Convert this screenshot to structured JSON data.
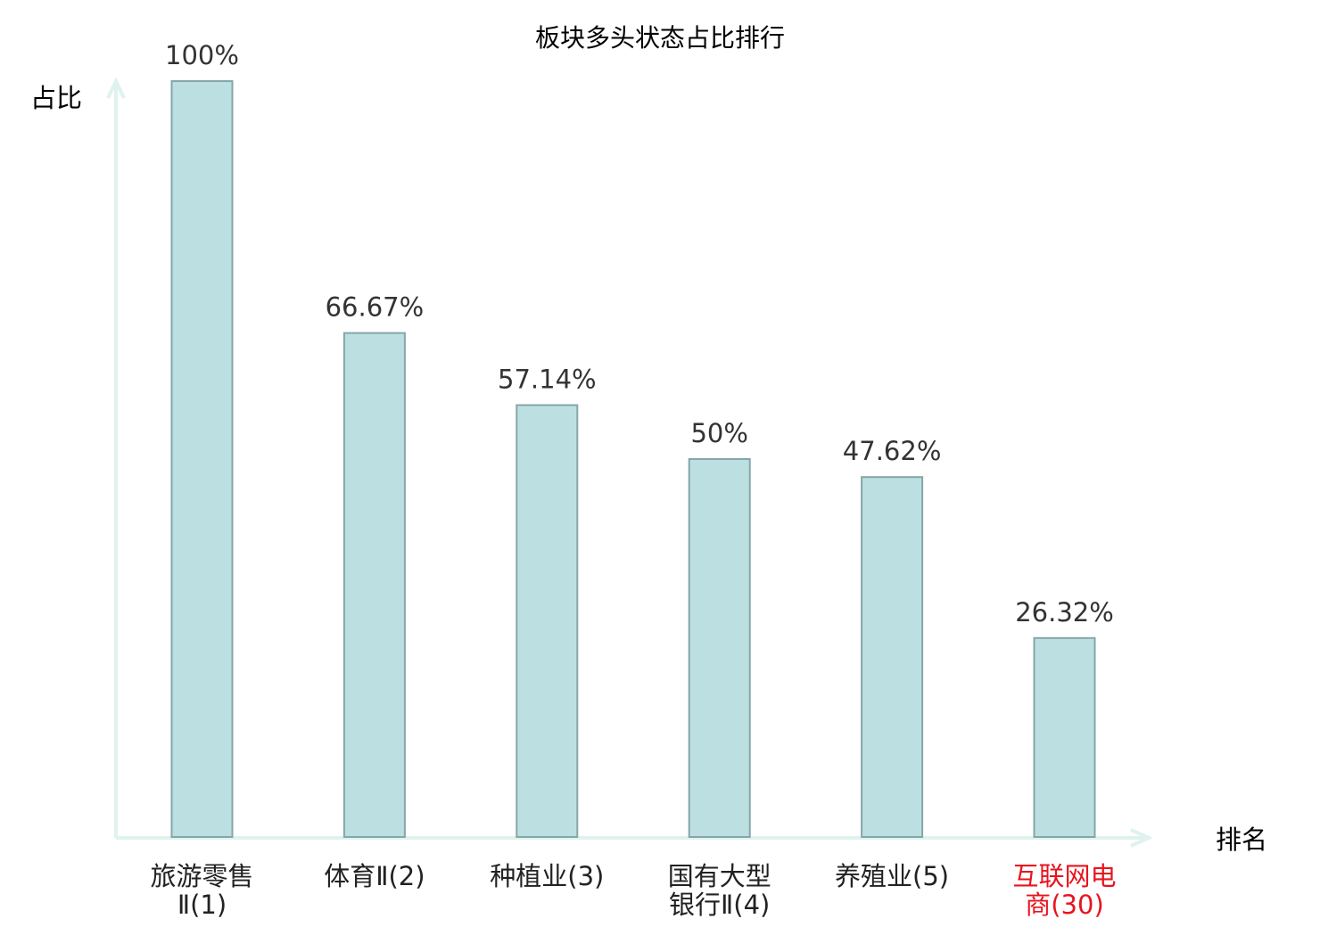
{
  "chart_data": {
    "type": "bar",
    "title": "板块多头状态占比排行",
    "xlabel": "排名",
    "ylabel": "占比",
    "categories": [
      [
        "旅游零售",
        "Ⅱ(1)"
      ],
      [
        "体育Ⅱ(2)"
      ],
      [
        "种植业(3)"
      ],
      [
        "国有大型",
        "银行Ⅱ(4)"
      ],
      [
        "养殖业(5)"
      ],
      [
        "互联网电",
        "商(30)"
      ]
    ],
    "values": [
      100,
      66.67,
      57.14,
      50,
      47.62,
      26.32
    ],
    "value_labels": [
      "100%",
      "66.67%",
      "57.14%",
      "50%",
      "47.62%",
      "26.32%"
    ],
    "highlight_index": 5,
    "ylim": [
      0,
      100
    ],
    "grid": false,
    "colors": {
      "bar_fill": "#bce0e2",
      "bar_stroke": "#86a6a8",
      "axis": "#dff2ee",
      "text": "#222222",
      "highlight": "#e8141e"
    }
  }
}
